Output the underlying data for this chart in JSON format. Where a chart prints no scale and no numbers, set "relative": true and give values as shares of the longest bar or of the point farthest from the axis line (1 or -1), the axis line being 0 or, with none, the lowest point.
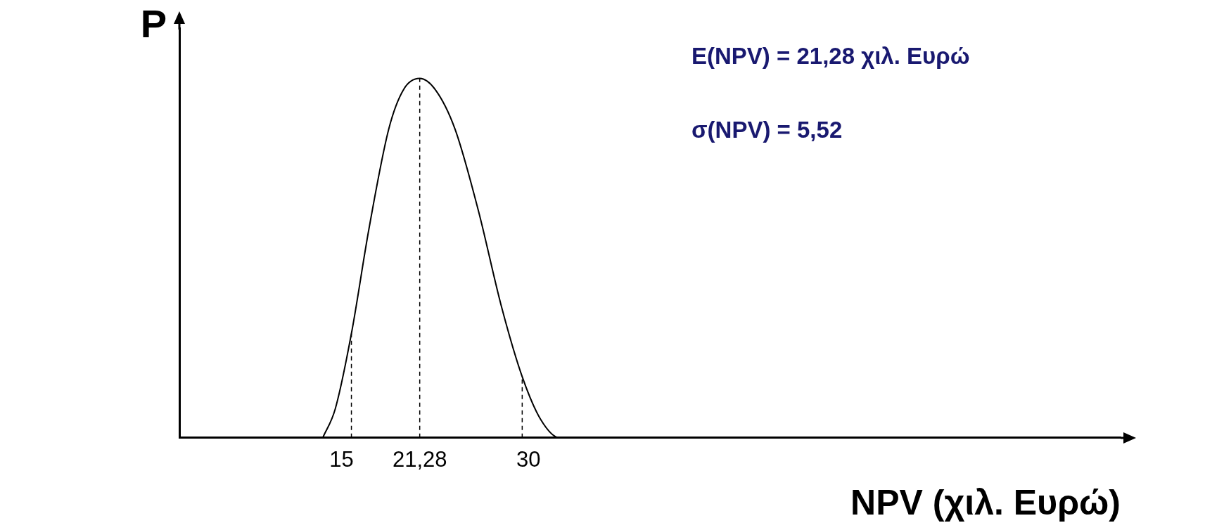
{
  "chart_data": {
    "type": "line",
    "relative": true,
    "xlabel": "NPV (χιλ. Ευρώ)",
    "ylabel": "P",
    "x": [
      13.5,
      14.5,
      15.8,
      17.2,
      18.8,
      20.0,
      21.28,
      22.5,
      24.1,
      26.0,
      27.8,
      29.5,
      31.0,
      32.5,
      33.9
    ],
    "series": [
      {
        "color": "#000000",
        "values": [
          0,
          0.08,
          0.29,
          0.58,
          0.86,
          0.97,
          1,
          0.97,
          0.86,
          0.63,
          0.37,
          0.17,
          0.05,
          0,
          0
        ]
      }
    ],
    "xlim": [
      2,
      77.5
    ],
    "xticks": [
      {
        "value": 15,
        "label": "15"
      },
      {
        "value": 21.28,
        "label": "21,28"
      },
      {
        "value": 30,
        "label": "30"
      }
    ],
    "ref_lines": [
      {
        "axis": "x",
        "value": 15.8,
        "line_style": "dashed",
        "color": "#000000"
      },
      {
        "axis": "x",
        "value": 21.28,
        "line_style": "dashed",
        "color": "#000000"
      },
      {
        "axis": "x",
        "value": 29.5,
        "line_style": "dashed",
        "color": "#000000"
      }
    ],
    "annotations": [
      "E(NPV) = 21,28 χιλ. Ευρώ",
      "σ(NPV) = 5,52"
    ],
    "grid": false,
    "legend": false,
    "marker": "none",
    "line_style": "solid"
  }
}
